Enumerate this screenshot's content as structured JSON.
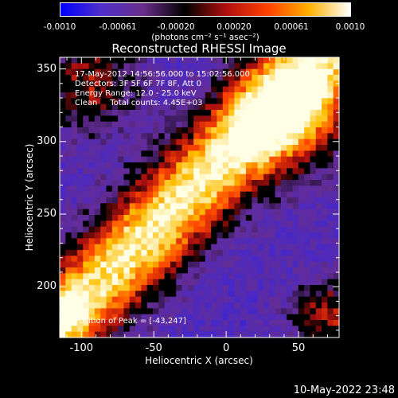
{
  "colorbar": {
    "ticks": [
      "-0.0010",
      "-0.00061",
      "-0.00020",
      "0.00020",
      "0.00061",
      "0.0010"
    ],
    "units": "(photons cm⁻² s⁻¹ asec⁻²)",
    "colors": [
      "#0000ff",
      "#5030c8",
      "#6a2d8a",
      "#000000",
      "#b01010",
      "#ff4000",
      "#ffb000",
      "#ffffff"
    ]
  },
  "chart_data": {
    "type": "heatmap",
    "title": "Reconstructed RHESSI Image",
    "xlabel": "Heliocentric X (arcsec)",
    "ylabel": "Heliocentric Y (arcsec)",
    "xlim": [
      -115,
      78
    ],
    "ylim": [
      165,
      358
    ],
    "x_ticks": [
      "-100",
      "-50",
      "0",
      "50"
    ],
    "y_ticks": [
      "200",
      "250",
      "300",
      "350"
    ],
    "x_tick_values": [
      -100,
      -50,
      0,
      50
    ],
    "y_tick_values": [
      200,
      250,
      300,
      350
    ],
    "peak_position": [
      -43,
      247
    ],
    "color_range": [
      -0.001,
      0.001
    ],
    "annotations": {
      "line1": "17-May-2012 14:56:56.000 to 15:02:56.000",
      "line2": "Detectors: 3F 5F 6F 7F 8F, Att 0",
      "line3": "Energy Range: 12.0 - 25.0 keV",
      "line4": "Clean     Total counts: 4.45E+03",
      "peak": "Position of Peak = [-43,247]"
    }
  },
  "footer": {
    "timestamp": "10-May-2022 23:48"
  }
}
